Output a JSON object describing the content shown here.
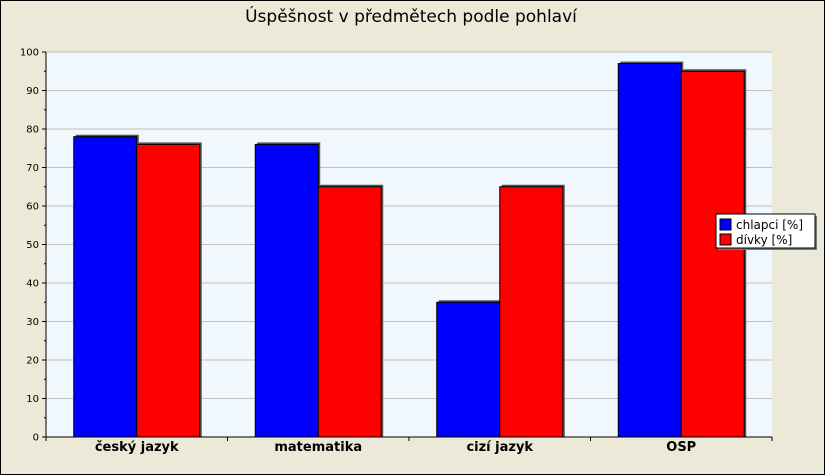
{
  "chart_data": {
    "type": "bar",
    "title": "Úspěšnost v předmětech podle pohlaví",
    "xlabel": "",
    "ylabel": "",
    "categories": [
      "český jazyk",
      "matematika",
      "cizí jazyk",
      "OSP"
    ],
    "series": [
      {
        "name": "chlapci [%]",
        "color": "#0000ff",
        "values": [
          78,
          76,
          35,
          97
        ]
      },
      {
        "name": "dívky [%]",
        "color": "#ff0000",
        "values": [
          76,
          65,
          65,
          95
        ]
      }
    ],
    "ylim": [
      0,
      100
    ],
    "yticks": [
      0,
      10,
      20,
      30,
      40,
      50,
      60,
      70,
      80,
      90,
      100
    ],
    "grid": true,
    "legend_position": "right",
    "plot_background": "#f0f8fe",
    "frame_background": "#ece9d8"
  }
}
